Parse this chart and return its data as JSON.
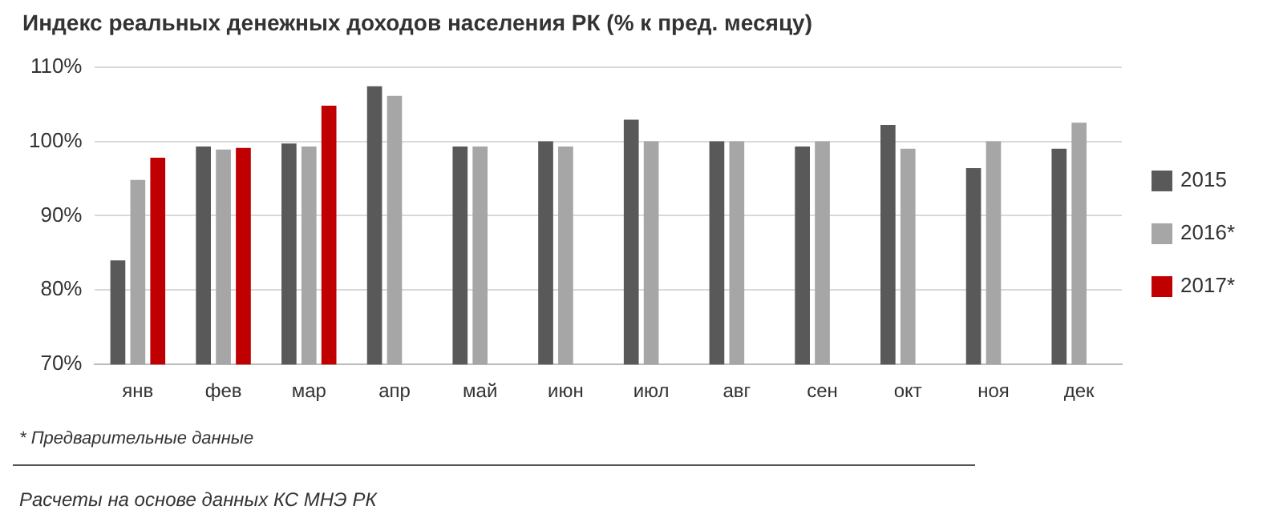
{
  "chart_data": {
    "type": "bar",
    "title": "Индекс реальных денежных доходов населения РК (% к пред. месяцу)",
    "categories": [
      "янв",
      "фев",
      "мар",
      "апр",
      "май",
      "июн",
      "июл",
      "авг",
      "сен",
      "окт",
      "ноя",
      "дек"
    ],
    "series": [
      {
        "name": "2015",
        "color": "#595959",
        "values": [
          84,
          99.3,
          99.7,
          107.4,
          99.3,
          100,
          102.9,
          100,
          99.3,
          102.2,
          96.4,
          99
        ]
      },
      {
        "name": "2016*",
        "color": "#a6a6a6",
        "values": [
          94.8,
          98.9,
          99.3,
          106.1,
          99.3,
          99.3,
          100,
          100,
          100,
          99,
          100,
          102.5
        ]
      },
      {
        "name": "2017*",
        "color": "#c00000",
        "values": [
          97.8,
          99.1,
          104.8,
          null,
          null,
          null,
          null,
          null,
          null,
          null,
          null,
          null
        ]
      }
    ],
    "ylim": [
      70,
      110
    ],
    "yticks": [
      {
        "value": 70,
        "label": "70%"
      },
      {
        "value": 80,
        "label": "80%"
      },
      {
        "value": 90,
        "label": "90%"
      },
      {
        "value": 100,
        "label": "100%"
      },
      {
        "value": 110,
        "label": "110%"
      }
    ],
    "grid": "y",
    "legend": "right",
    "annotations": [
      "* Предварительные данные",
      "Расчеты на основе данных КС МНЭ РК"
    ]
  }
}
